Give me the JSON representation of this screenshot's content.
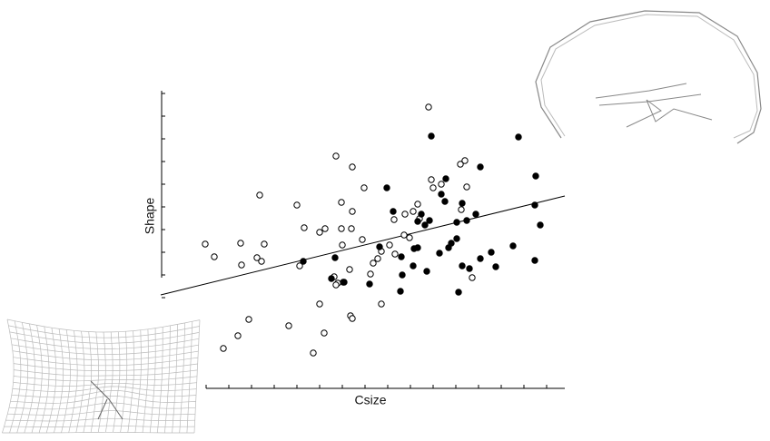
{
  "chart_data": {
    "type": "scatter",
    "x_label": "Csize",
    "y_label": "Shape",
    "xlim": [
      -2,
      16
    ],
    "ylim": [
      0,
      14
    ],
    "xticks": [
      0,
      1,
      2,
      3,
      4,
      5,
      6,
      7,
      8,
      9,
      10,
      11,
      12,
      13,
      14,
      15
    ],
    "yticks": [
      4,
      5,
      6,
      7,
      8,
      9,
      10,
      11,
      12,
      13
    ],
    "series": [
      {
        "marker": "open",
        "color": "#000000",
        "x": [
          9.8,
          5.72,
          6.44,
          2.36,
          4.0,
          6.96,
          5.96,
          6.44,
          4.32,
          5.0,
          5.24,
          5.96,
          6.4,
          6.0,
          6.88,
          -0.04,
          1.52,
          2.56,
          0.36,
          2.24,
          2.44,
          1.56,
          4.12,
          6.32,
          7.56,
          7.36,
          7.72,
          8.08,
          8.72,
          8.96,
          9.12,
          9.32,
          8.28,
          9.92,
          10.0,
          10.36,
          11.4,
          11.2,
          11.48,
          11.24,
          9.4,
          8.32,
          7.24,
          5.64,
          5.8,
          6.04,
          5.72,
          5.0,
          7.72,
          6.36,
          6.44,
          1.88,
          3.64,
          1.4,
          0.76,
          5.2,
          4.72,
          11.72,
          8.76
        ],
        "y": [
          12.4,
          10.24,
          9.76,
          8.52,
          8.08,
          8.84,
          8.2,
          7.8,
          7.08,
          6.88,
          7.04,
          7.04,
          7.04,
          6.32,
          6.56,
          6.36,
          6.4,
          6.36,
          5.8,
          5.76,
          5.6,
          5.44,
          5.4,
          5.24,
          5.72,
          5.52,
          6.04,
          6.32,
          6.76,
          6.64,
          7.8,
          8.12,
          7.44,
          9.2,
          8.84,
          9.0,
          10.04,
          9.88,
          8.88,
          7.88,
          7.48,
          5.92,
          5.04,
          4.92,
          4.64,
          4.68,
          4.56,
          3.72,
          3.72,
          3.2,
          3.08,
          3.04,
          2.76,
          2.32,
          1.76,
          2.44,
          1.56,
          4.88,
          7.68
        ]
      },
      {
        "marker": "filled",
        "color": "#000000",
        "x": [
          9.92,
          13.76,
          12.08,
          7.96,
          10.56,
          10.36,
          10.52,
          8.24,
          9.48,
          9.32,
          9.84,
          9.64,
          11.28,
          11.88,
          11.48,
          11.04,
          14.52,
          14.48,
          14.72,
          7.64,
          9.16,
          9.32,
          8.6,
          5.68,
          4.28,
          5.52,
          6.08,
          7.2,
          8.64,
          9.12,
          9.72,
          10.28,
          10.68,
          10.8,
          11.04,
          11.28,
          11.6,
          12.08,
          12.56,
          12.76,
          13.52,
          14.48,
          11.12,
          8.56
        ],
        "y": [
          11.12,
          11.08,
          9.76,
          8.84,
          9.24,
          8.56,
          8.24,
          7.8,
          7.68,
          7.36,
          7.4,
          7.2,
          8.16,
          7.68,
          7.4,
          7.32,
          9.36,
          8.08,
          7.2,
          6.24,
          6.16,
          6.2,
          5.8,
          5.76,
          5.6,
          4.84,
          4.68,
          4.6,
          5.0,
          5.4,
          5.16,
          5.96,
          6.2,
          6.4,
          6.6,
          5.4,
          5.28,
          5.72,
          6.0,
          5.36,
          6.28,
          5.64,
          4.24,
          4.28
        ]
      }
    ],
    "fit": {
      "color": "#000000",
      "x": [
        -2,
        15.8
      ],
      "y": [
        4.12,
        8.48
      ]
    }
  }
}
